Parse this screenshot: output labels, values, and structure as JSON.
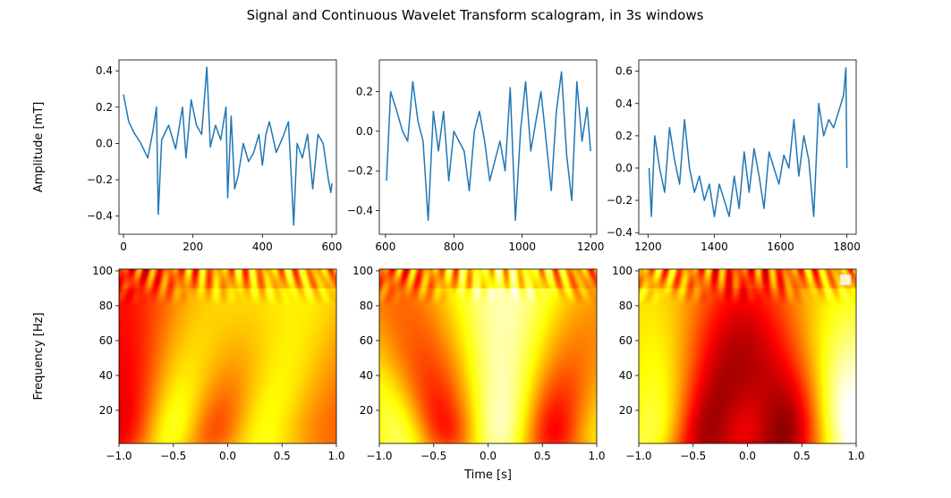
{
  "title": "Signal and Continuous Wavelet Transform scalogram, in 3s windows",
  "colors": {
    "line": "#1f77b4",
    "colormap": "hot"
  },
  "chart_data": [
    {
      "type": "line",
      "ylabel": "Amplitude [mT]",
      "xlim": [
        -13,
        613
      ],
      "ylim": [
        -0.5,
        0.46
      ],
      "xticks": [
        0,
        200,
        400,
        600
      ],
      "xtick_labels": [
        "0",
        "200",
        "400",
        "600"
      ],
      "yticks": [
        -0.4,
        -0.2,
        0.0,
        0.2,
        0.4
      ],
      "ytick_labels": [
        "−0.4",
        "−0.2",
        "0.0",
        "0.2",
        "0.4"
      ],
      "series": [
        {
          "x": [
            0,
            15,
            30,
            50,
            70,
            85,
            95,
            100,
            110,
            130,
            150,
            170,
            180,
            195,
            210,
            225,
            235,
            240,
            250,
            265,
            280,
            295,
            300,
            310,
            320,
            330,
            345,
            360,
            375,
            390,
            400,
            410,
            420,
            440,
            460,
            475,
            485,
            490,
            500,
            515,
            530,
            545,
            560,
            575,
            590,
            597,
            600
          ],
          "y": [
            0.27,
            0.12,
            0.06,
            0.0,
            -0.08,
            0.07,
            0.2,
            -0.39,
            0.02,
            0.1,
            -0.03,
            0.2,
            -0.08,
            0.24,
            0.1,
            0.05,
            0.3,
            0.42,
            -0.02,
            0.1,
            0.02,
            0.2,
            -0.3,
            0.15,
            -0.25,
            -0.18,
            0.0,
            -0.1,
            -0.05,
            0.05,
            -0.12,
            0.05,
            0.12,
            -0.05,
            0.04,
            0.12,
            -0.25,
            -0.45,
            0.0,
            -0.08,
            0.05,
            -0.25,
            0.05,
            0.0,
            -0.2,
            -0.27,
            -0.22
          ]
        }
      ]
    },
    {
      "type": "line",
      "ylabel": "",
      "xlim": [
        582,
        1218
      ],
      "ylim": [
        -0.52,
        0.36
      ],
      "xticks": [
        600,
        800,
        1000,
        1200
      ],
      "xtick_labels": [
        "600",
        "800",
        "1000",
        "1200"
      ],
      "yticks": [
        -0.4,
        -0.2,
        0.0,
        0.2
      ],
      "ytick_labels": [
        "−0.4",
        "−0.2",
        "0.0",
        "0.2"
      ],
      "series": [
        {
          "x": [
            603,
            615,
            630,
            650,
            665,
            680,
            695,
            710,
            725,
            740,
            755,
            770,
            785,
            800,
            815,
            830,
            845,
            860,
            875,
            890,
            905,
            920,
            935,
            950,
            965,
            980,
            995,
            1010,
            1025,
            1040,
            1055,
            1070,
            1085,
            1100,
            1115,
            1130,
            1145,
            1160,
            1175,
            1190,
            1200
          ],
          "y": [
            -0.25,
            0.2,
            0.12,
            0.0,
            -0.05,
            0.25,
            0.05,
            -0.05,
            -0.45,
            0.1,
            -0.1,
            0.1,
            -0.25,
            0.0,
            -0.05,
            -0.1,
            -0.3,
            0.0,
            0.1,
            -0.05,
            -0.25,
            -0.15,
            -0.05,
            -0.2,
            0.22,
            -0.45,
            0.0,
            0.25,
            -0.1,
            0.05,
            0.2,
            -0.05,
            -0.3,
            0.1,
            0.3,
            -0.12,
            -0.35,
            0.25,
            -0.05,
            0.12,
            -0.1
          ]
        }
      ]
    },
    {
      "type": "line",
      "ylabel": "",
      "xlim": [
        1172,
        1828
      ],
      "ylim": [
        -0.41,
        0.67
      ],
      "xticks": [
        1200,
        1400,
        1600,
        1800
      ],
      "xtick_labels": [
        "1200",
        "1400",
        "1600",
        "1800"
      ],
      "yticks": [
        -0.4,
        -0.2,
        0.0,
        0.2,
        0.4,
        0.6
      ],
      "ytick_labels": [
        "−0.4",
        "−0.2",
        "0.0",
        "0.2",
        "0.4",
        "0.6"
      ],
      "series": [
        {
          "x": [
            1203,
            1210,
            1220,
            1235,
            1250,
            1265,
            1280,
            1295,
            1310,
            1325,
            1340,
            1355,
            1370,
            1385,
            1400,
            1415,
            1430,
            1445,
            1460,
            1475,
            1490,
            1505,
            1520,
            1535,
            1550,
            1565,
            1580,
            1595,
            1610,
            1625,
            1640,
            1655,
            1670,
            1685,
            1700,
            1715,
            1730,
            1745,
            1760,
            1775,
            1790,
            1797,
            1800
          ],
          "y": [
            0.0,
            -0.3,
            0.2,
            0.0,
            -0.15,
            0.25,
            0.05,
            -0.1,
            0.3,
            0.0,
            -0.15,
            -0.05,
            -0.2,
            -0.1,
            -0.3,
            -0.1,
            -0.2,
            -0.3,
            -0.05,
            -0.25,
            0.1,
            -0.15,
            0.12,
            -0.05,
            -0.25,
            0.1,
            0.0,
            -0.1,
            0.08,
            0.0,
            0.3,
            -0.05,
            0.2,
            0.05,
            -0.3,
            0.4,
            0.2,
            0.3,
            0.25,
            0.35,
            0.45,
            0.62,
            0.0
          ]
        }
      ]
    },
    {
      "type": "heatmap",
      "ylabel": "Frequency [Hz]",
      "xlim": [
        -1.0,
        1.0
      ],
      "ylim": [
        1,
        101
      ],
      "xticks": [
        -1.0,
        -0.5,
        0.0,
        0.5,
        1.0
      ],
      "xtick_labels": [
        "−1.0",
        "−0.5",
        "0.0",
        "0.5",
        "1.0"
      ],
      "yticks": [
        20,
        40,
        60,
        80,
        100
      ],
      "ytick_labels": [
        "20",
        "40",
        "60",
        "80",
        "100"
      ],
      "peaks": [
        {
          "t": -0.3,
          "f": 35,
          "amplitude": 1.0,
          "tilt": 0.004
        },
        {
          "t": 0.35,
          "f": 25,
          "amplitude": 0.5,
          "tilt": 0.003
        }
      ],
      "troughs": [
        {
          "t": -0.85,
          "f": 35,
          "depth": 0.5,
          "tilt": 0.002
        },
        {
          "t": 0.02,
          "f": 60,
          "depth": 0.95,
          "tilt": 0.004
        }
      ]
    },
    {
      "type": "heatmap",
      "ylabel": "",
      "xlim": [
        -1.0,
        1.0
      ],
      "ylim": [
        1,
        101
      ],
      "xticks": [
        -1.0,
        -0.5,
        0.0,
        0.5,
        1.0
      ],
      "xtick_labels": [
        "−1.0",
        "−0.5",
        "0.0",
        "0.5",
        "1.0"
      ],
      "yticks": [
        20,
        40,
        60,
        80,
        100
      ],
      "ytick_labels": [
        "20",
        "40",
        "60",
        "80",
        "100"
      ],
      "xlabel": "Time [s]",
      "peaks": [
        {
          "t": -0.85,
          "f": 60,
          "amplitude": 0.9,
          "tilt": -0.003
        },
        {
          "t": 0.2,
          "f": 40,
          "amplitude": 0.9,
          "tilt": 0.002
        },
        {
          "t": 0.9,
          "f": 40,
          "amplitude": 0.6,
          "tilt": 0.0
        }
      ],
      "troughs": [
        {
          "t": -0.45,
          "f": 10,
          "depth": 1.0,
          "tilt": -0.005
        },
        {
          "t": 0.65,
          "f": 30,
          "depth": 0.95,
          "tilt": 0.002
        }
      ]
    },
    {
      "type": "heatmap",
      "ylabel": "",
      "xlim": [
        -1.0,
        1.0
      ],
      "ylim": [
        1,
        101
      ],
      "xticks": [
        -1.0,
        -0.5,
        0.0,
        0.5,
        1.0
      ],
      "xtick_labels": [
        "−1.0",
        "−0.5",
        "0.0",
        "0.5",
        "1.0"
      ],
      "yticks": [
        20,
        40,
        60,
        80,
        100
      ],
      "ytick_labels": [
        "20",
        "40",
        "60",
        "80",
        "100"
      ],
      "peaks": [
        {
          "t": -0.7,
          "f": 35,
          "amplitude": 0.75,
          "tilt": 0.003
        },
        {
          "t": 0.95,
          "f": 20,
          "amplitude": 1.0,
          "tilt": -0.004
        }
      ],
      "troughs": [
        {
          "t": -0.35,
          "f": 40,
          "depth": 0.9,
          "tilt": 0.003
        },
        {
          "t": 0.45,
          "f": 45,
          "depth": 0.7,
          "tilt": 0.002
        }
      ],
      "legend": "top-right"
    }
  ]
}
